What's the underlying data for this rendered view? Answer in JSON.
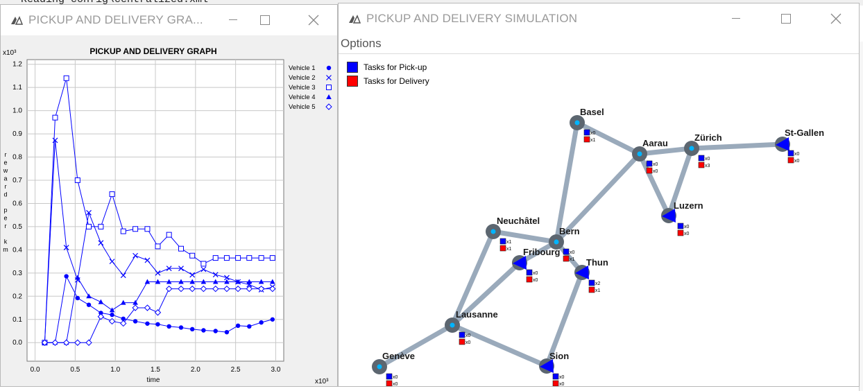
{
  "background": {
    "text": "Reading config\\centralized.xml"
  },
  "graph_window": {
    "title": "PICKUP AND DELIVERY GRA...",
    "chart_title": "PICKUP AND DELIVERY GRAPH",
    "ylabel": "reward per km",
    "xlabel": "time",
    "y_exponent": "x10³",
    "x_exponent": "x10³",
    "controls": {
      "minimize": "minimize",
      "maximize": "maximize",
      "close": "close"
    }
  },
  "chart_data": {
    "type": "line",
    "title": "PICKUP AND DELIVERY GRAPH",
    "xlabel": "time",
    "ylabel": "reward per km",
    "x_multiplier": "x10³",
    "y_multiplier": "x10³",
    "xlim": [
      -0.1,
      3.1
    ],
    "ylim": [
      -0.08,
      1.22
    ],
    "x_ticks": [
      "0.0",
      "0.5",
      "1.0",
      "1.5",
      "2.0",
      "2.5",
      "3.0"
    ],
    "y_ticks": [
      "0.0",
      "0.1",
      "0.2",
      "0.3",
      "0.4",
      "0.5",
      "0.6",
      "0.7",
      "0.8",
      "0.9",
      "1.0",
      "1.1",
      "1.2"
    ],
    "grid": true,
    "legend_position": "top-right",
    "series": [
      {
        "name": "Vehicle 1",
        "marker": "circle",
        "color": "#0000ff",
        "x": [
          0.12,
          0.25,
          0.39,
          0.53,
          0.67,
          0.82,
          0.96,
          1.1,
          1.25,
          1.4,
          1.53,
          1.67,
          1.82,
          1.96,
          2.1,
          2.25,
          2.39,
          2.53,
          2.67,
          2.82,
          2.96
        ],
        "y": [
          0.0,
          0.0,
          0.286,
          0.192,
          0.163,
          0.128,
          0.12,
          0.103,
          0.092,
          0.082,
          0.079,
          0.07,
          0.065,
          0.058,
          0.053,
          0.05,
          0.045,
          0.073,
          0.07,
          0.087,
          0.1
        ]
      },
      {
        "name": "Vehicle 2",
        "marker": "x",
        "color": "#0000ff",
        "x": [
          0.12,
          0.25,
          0.39,
          0.53,
          0.67,
          0.82,
          0.96,
          1.1,
          1.25,
          1.4,
          1.53,
          1.67,
          1.82,
          1.96,
          2.1,
          2.25,
          2.39,
          2.53,
          2.67,
          2.82,
          2.96
        ],
        "y": [
          0.0,
          0.872,
          0.41,
          0.27,
          0.56,
          0.43,
          0.35,
          0.29,
          0.375,
          0.355,
          0.3,
          0.32,
          0.32,
          0.292,
          0.316,
          0.293,
          0.28,
          0.262,
          0.25,
          0.228,
          0.24
        ]
      },
      {
        "name": "Vehicle 3",
        "marker": "square",
        "color": "#0000ff",
        "x": [
          0.12,
          0.25,
          0.39,
          0.53,
          0.67,
          0.82,
          0.96,
          1.1,
          1.25,
          1.4,
          1.53,
          1.67,
          1.82,
          1.96,
          2.1,
          2.25,
          2.39,
          2.53,
          2.67,
          2.82,
          2.96
        ],
        "y": [
          0.0,
          0.97,
          1.14,
          0.7,
          0.5,
          0.5,
          0.64,
          0.48,
          0.49,
          0.49,
          0.415,
          0.465,
          0.405,
          0.375,
          0.34,
          0.365,
          0.365,
          0.365,
          0.365,
          0.365,
          0.365
        ]
      },
      {
        "name": "Vehicle 4",
        "marker": "triangle",
        "color": "#0000ff",
        "x": [
          0.12,
          0.25,
          0.39,
          0.53,
          0.67,
          0.82,
          0.96,
          1.1,
          1.25,
          1.4,
          1.53,
          1.67,
          1.82,
          1.96,
          2.1,
          2.25,
          2.39,
          2.53,
          2.67,
          2.82,
          2.96
        ],
        "y": [
          0.0,
          0.0,
          0.0,
          0.28,
          0.2,
          0.175,
          0.14,
          0.172,
          0.172,
          0.262,
          0.262,
          0.262,
          0.262,
          0.262,
          0.262,
          0.262,
          0.262,
          0.262,
          0.262,
          0.262,
          0.262
        ]
      },
      {
        "name": "Vehicle 5",
        "marker": "diamond",
        "color": "#0000ff",
        "x": [
          0.12,
          0.25,
          0.39,
          0.53,
          0.67,
          0.82,
          0.96,
          1.1,
          1.25,
          1.4,
          1.53,
          1.67,
          1.82,
          1.96,
          2.1,
          2.25,
          2.39,
          2.53,
          2.67,
          2.82,
          2.96
        ],
        "y": [
          0.0,
          0.0,
          0.0,
          0.0,
          0.0,
          0.112,
          0.092,
          0.083,
          0.15,
          0.15,
          0.13,
          0.232,
          0.232,
          0.232,
          0.232,
          0.232,
          0.232,
          0.232,
          0.232,
          0.232,
          0.232
        ]
      }
    ]
  },
  "sim_window": {
    "title": "PICKUP AND DELIVERY SIMULATION",
    "menu": {
      "options": "Options"
    },
    "legend": {
      "pickup": "Tasks for Pick-up",
      "delivery": "Tasks for Delivery"
    },
    "colors": {
      "pickup": "#0000ff",
      "delivery": "#ff0000",
      "road": "#9aaabb",
      "node": "#5c6670",
      "node_center": "#00b4ff",
      "vehicle": "#0000ff"
    },
    "controls": {
      "minimize": "minimize",
      "maximize": "maximize",
      "close": "close"
    }
  },
  "map": {
    "cities": [
      {
        "name": "Basel",
        "pickup": "x0",
        "delivery": "x1",
        "vehicle": false
      },
      {
        "name": "Aarau",
        "pickup": "x0",
        "delivery": "x0",
        "vehicle": false
      },
      {
        "name": "Zürich",
        "pickup": "x0",
        "delivery": "x3",
        "vehicle": false
      },
      {
        "name": "St-Gallen",
        "pickup": "x0",
        "delivery": "x0",
        "vehicle": true
      },
      {
        "name": "Luzern",
        "pickup": "x0",
        "delivery": "x0",
        "vehicle": true
      },
      {
        "name": "Neuchâtel",
        "pickup": "x1",
        "delivery": "x1",
        "vehicle": false
      },
      {
        "name": "Bern",
        "pickup": "x0",
        "delivery": "x1",
        "vehicle": false
      },
      {
        "name": "Fribourg",
        "pickup": "x0",
        "delivery": "x0",
        "vehicle": true
      },
      {
        "name": "Thun",
        "pickup": "x2",
        "delivery": "x1",
        "vehicle": true
      },
      {
        "name": "Lausanne",
        "pickup": "x0",
        "delivery": "x0",
        "vehicle": false
      },
      {
        "name": "Genève",
        "pickup": "x0",
        "delivery": "x0",
        "vehicle": false
      },
      {
        "name": "Sion",
        "pickup": "x0",
        "delivery": "x0",
        "vehicle": true
      }
    ],
    "roads": [
      [
        "Basel",
        "Aarau"
      ],
      [
        "Basel",
        "Bern"
      ],
      [
        "Aarau",
        "Zürich"
      ],
      [
        "Aarau",
        "Bern"
      ],
      [
        "Aarau",
        "Luzern"
      ],
      [
        "Zürich",
        "St-Gallen"
      ],
      [
        "Zürich",
        "Luzern"
      ],
      [
        "Neuchâtel",
        "Bern"
      ],
      [
        "Neuchâtel",
        "Lausanne"
      ],
      [
        "Bern",
        "Fribourg"
      ],
      [
        "Bern",
        "Thun"
      ],
      [
        "Fribourg",
        "Lausanne"
      ],
      [
        "Thun",
        "Sion"
      ],
      [
        "Lausanne",
        "Genève"
      ],
      [
        "Lausanne",
        "Sion"
      ]
    ]
  }
}
